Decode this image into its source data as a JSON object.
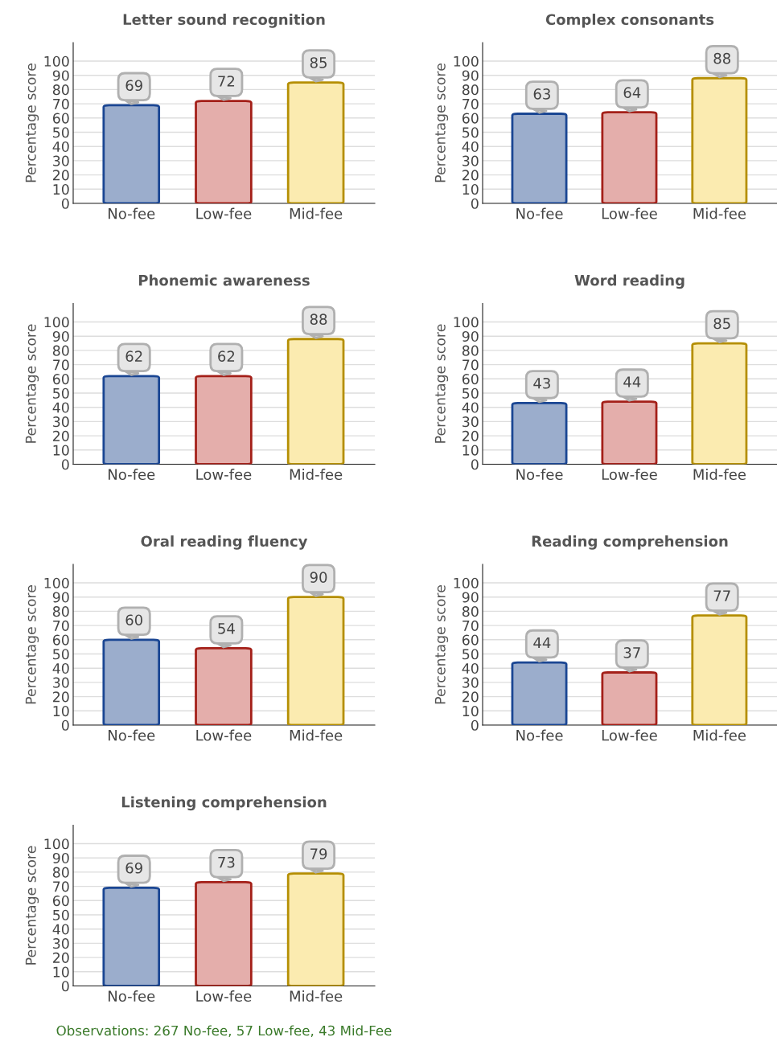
{
  "chart_data": [
    {
      "type": "bar",
      "title": "Letter sound recognition",
      "ylabel": "Percentage score",
      "categories": [
        "No-fee",
        "Low-fee",
        "Mid-fee"
      ],
      "values": [
        69,
        72,
        85
      ],
      "colors": [
        "#9badcc",
        "#e4aeab",
        "#fbebb0"
      ],
      "ylim": [
        0,
        113
      ],
      "yticks": [
        0,
        10,
        20,
        30,
        40,
        50,
        60,
        70,
        80,
        90,
        100
      ],
      "grid": "y",
      "data_labels": true
    },
    {
      "type": "bar",
      "title": "Complex consonants",
      "ylabel": "Percentage score",
      "categories": [
        "No-fee",
        "Low-fee",
        "Mid-fee"
      ],
      "values": [
        63,
        64,
        88
      ],
      "colors": [
        "#9badcc",
        "#e4aeab",
        "#fbebb0"
      ],
      "ylim": [
        0,
        113
      ],
      "yticks": [
        0,
        10,
        20,
        30,
        40,
        50,
        60,
        70,
        80,
        90,
        100
      ],
      "grid": "y",
      "data_labels": true
    },
    {
      "type": "bar",
      "title": "Phonemic awareness",
      "ylabel": "Percentage score",
      "categories": [
        "No-fee",
        "Low-fee",
        "Mid-fee"
      ],
      "values": [
        62,
        62,
        88
      ],
      "colors": [
        "#9badcc",
        "#e4aeab",
        "#fbebb0"
      ],
      "ylim": [
        0,
        113
      ],
      "yticks": [
        0,
        10,
        20,
        30,
        40,
        50,
        60,
        70,
        80,
        90,
        100
      ],
      "grid": "y",
      "data_labels": true
    },
    {
      "type": "bar",
      "title": "Word reading",
      "ylabel": "Percentage score",
      "categories": [
        "No-fee",
        "Low-fee",
        "Mid-fee"
      ],
      "values": [
        43,
        44,
        85
      ],
      "colors": [
        "#9badcc",
        "#e4aeab",
        "#fbebb0"
      ],
      "ylim": [
        0,
        113
      ],
      "yticks": [
        0,
        10,
        20,
        30,
        40,
        50,
        60,
        70,
        80,
        90,
        100
      ],
      "grid": "y",
      "data_labels": true
    },
    {
      "type": "bar",
      "title": "Oral reading fluency",
      "ylabel": "Percentage score",
      "categories": [
        "No-fee",
        "Low-fee",
        "Mid-fee"
      ],
      "values": [
        60,
        54,
        90
      ],
      "colors": [
        "#9badcc",
        "#e4aeab",
        "#fbebb0"
      ],
      "ylim": [
        0,
        113
      ],
      "yticks": [
        0,
        10,
        20,
        30,
        40,
        50,
        60,
        70,
        80,
        90,
        100
      ],
      "grid": "y",
      "data_labels": true
    },
    {
      "type": "bar",
      "title": "Reading comprehension",
      "ylabel": "Percentage score",
      "categories": [
        "No-fee",
        "Low-fee",
        "Mid-fee"
      ],
      "values": [
        44,
        37,
        77
      ],
      "colors": [
        "#9badcc",
        "#e4aeab",
        "#fbebb0"
      ],
      "ylim": [
        0,
        113
      ],
      "yticks": [
        0,
        10,
        20,
        30,
        40,
        50,
        60,
        70,
        80,
        90,
        100
      ],
      "grid": "y",
      "data_labels": true
    },
    {
      "type": "bar",
      "title": "Listening comprehension",
      "ylabel": "Percentage score",
      "categories": [
        "No-fee",
        "Low-fee",
        "Mid-fee"
      ],
      "values": [
        69,
        73,
        79
      ],
      "colors": [
        "#9badcc",
        "#e4aeab",
        "#fbebb0"
      ],
      "ylim": [
        0,
        113
      ],
      "yticks": [
        0,
        10,
        20,
        30,
        40,
        50,
        60,
        70,
        80,
        90,
        100
      ],
      "grid": "y",
      "data_labels": true,
      "annotations": [
        "Observations: 267 No-fee, 57 Low-fee, 43 Mid-Fee"
      ]
    }
  ]
}
